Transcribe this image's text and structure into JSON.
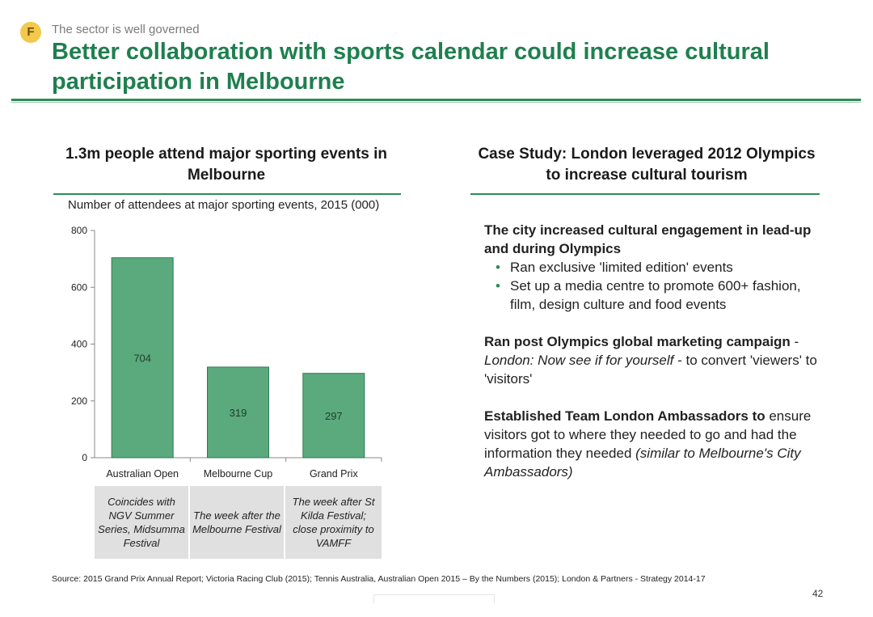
{
  "header": {
    "badge": "F",
    "section_label": "The sector is well governed",
    "title": "Better collaboration with sports calendar could increase cultural participation in Melbourne"
  },
  "left": {
    "heading": "1.3m people attend major sporting events in Melbourne",
    "chart_subtitle": "Number of attendees at major sporting events, 2015 (000)"
  },
  "chart_data": {
    "type": "bar",
    "title": "Number of attendees at major sporting events, 2015 (000)",
    "categories": [
      "Australian Open",
      "Melbourne Cup",
      "Grand Prix"
    ],
    "values": [
      704,
      319,
      297
    ],
    "ylim": [
      0,
      800
    ],
    "yticks": [
      0,
      200,
      400,
      600,
      800
    ],
    "bar_color": "#5aaa7e",
    "bar_border": "#2f7a52",
    "grid": false
  },
  "notes": [
    "Coincides with NGV Summer Series, Midsumma Festival",
    "The week after the Melbourne Festival",
    "The week after St Kilda Festival; close proximity to VAMFF"
  ],
  "right": {
    "heading": "Case Study: London leveraged 2012 Olympics to increase cultural tourism",
    "p1_bold": "The city increased cultural engagement in lead-up and during Olympics",
    "bullet_1": "Ran exclusive 'limited edition' events",
    "bullet_2": "Set up a media centre to promote 600+ fashion, film, design culture and food events",
    "bullet_glyph": "•",
    "p2_bold": "Ran post Olympics global marketing campaign",
    "p2_sep": " - ",
    "p2_italic": "London: Now see if for yourself",
    "p2_rest": " - to convert 'viewers' to 'visitors'",
    "p3_bold": "Established Team London Ambassadors to",
    "p3_rest": " ensure visitors got to where they needed to go and had the information they needed ",
    "p3_italic": "(similar to Melbourne's City Ambassadors)"
  },
  "footer": {
    "source": "Source: 2015 Grand Prix Annual Report; Victoria Racing Club (2015); Tennis Australia, Australian Open 2015 – By the Numbers (2015); London & Partners - Strategy 2014-17",
    "page_number": "42"
  },
  "colors": {
    "title_green": "#1f7f4f",
    "badge_yellow": "#f2c94c",
    "note_gray": "#e0e0e0"
  }
}
